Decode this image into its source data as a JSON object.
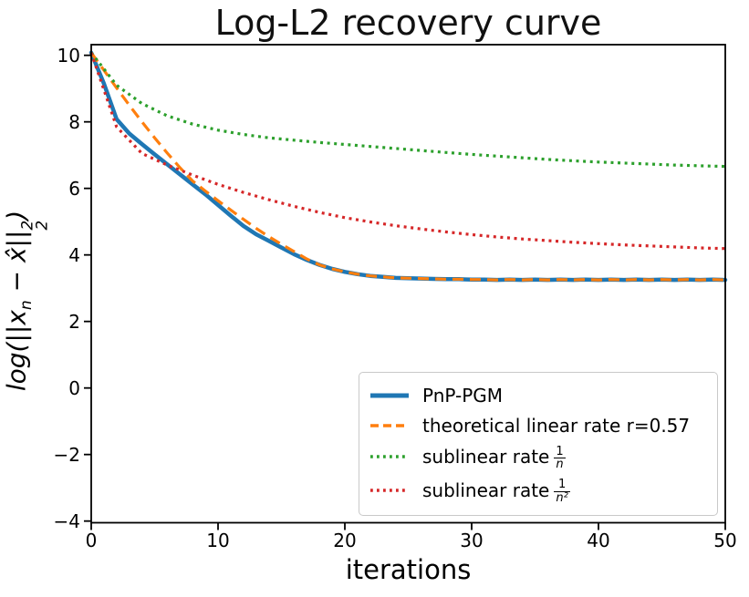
{
  "figure": {
    "background": "#ffffff",
    "axes_color": "#000000"
  },
  "chart_data": {
    "type": "line",
    "title": "Log-L2 recovery curve",
    "xlabel": "iterations",
    "ylabel": "log(||x_n − x̂||_2^2)",
    "ylabel_parts": {
      "lead": "log(||x",
      "sub_n": "n",
      "mid": " − x̂||",
      "sup_2": "2",
      "sub_2": "2",
      "close": ")"
    },
    "xlim": [
      0,
      50
    ],
    "ylim": [
      -4.05,
      10.32
    ],
    "grid": false,
    "xticks": [
      {
        "v": 0,
        "label": "0"
      },
      {
        "v": 10,
        "label": "10"
      },
      {
        "v": 20,
        "label": "20"
      },
      {
        "v": 30,
        "label": "30"
      },
      {
        "v": 40,
        "label": "40"
      },
      {
        "v": 50,
        "label": "50"
      }
    ],
    "yticks": [
      {
        "v": 10,
        "label": "10"
      },
      {
        "v": 8,
        "label": "8"
      },
      {
        "v": 6,
        "label": "6"
      },
      {
        "v": 4,
        "label": "4"
      },
      {
        "v": 2,
        "label": "2"
      },
      {
        "v": 0,
        "label": "0"
      },
      {
        "v": -2,
        "label": "−2"
      },
      {
        "v": -4,
        "label": "−4"
      }
    ],
    "legend": {
      "position": "lower right",
      "entries": [
        {
          "id": "pnp-pgm",
          "color": "#1f77b4",
          "style": "solid",
          "parts": [
            {
              "t": "text",
              "v": "PnP-PGM"
            }
          ]
        },
        {
          "id": "linear-rate",
          "color": "#ff7f0e",
          "style": "dashed",
          "parts": [
            {
              "t": "text",
              "v": "theoretical linear rate r=0.57"
            }
          ]
        },
        {
          "id": "sublinear-1-n",
          "color": "#2ca02c",
          "style": "dotted",
          "parts": [
            {
              "t": "text",
              "v": "sublinear rate"
            },
            {
              "t": "frac",
              "num": "1",
              "den": "n"
            }
          ]
        },
        {
          "id": "sublinear-1-n2",
          "color": "#d62728",
          "style": "dotted",
          "parts": [
            {
              "t": "text",
              "v": "sublinear rate"
            },
            {
              "t": "frac",
              "num": "1",
              "den": "n²"
            }
          ]
        }
      ]
    },
    "series": [
      {
        "id": "pnp-pgm",
        "name": "PnP-PGM",
        "color": "#1f77b4",
        "style": "solid",
        "width": 4.5,
        "x": [
          0,
          1,
          2,
          3,
          4,
          5,
          6,
          7,
          8,
          9,
          10,
          11,
          12,
          13,
          14,
          15,
          16,
          17,
          18,
          19,
          20,
          21,
          22,
          23,
          24,
          25,
          26,
          27,
          28,
          29,
          30,
          31,
          32,
          33,
          34,
          35,
          36,
          37,
          38,
          39,
          40,
          41,
          42,
          43,
          44,
          45,
          46,
          47,
          48,
          49,
          50
        ],
        "y": [
          10.08,
          9.15,
          8.08,
          7.65,
          7.33,
          7.02,
          6.72,
          6.42,
          6.12,
          5.82,
          5.5,
          5.18,
          4.87,
          4.62,
          4.42,
          4.22,
          4.02,
          3.85,
          3.7,
          3.58,
          3.49,
          3.42,
          3.37,
          3.34,
          3.31,
          3.3,
          3.29,
          3.28,
          3.27,
          3.27,
          3.26,
          3.26,
          3.25,
          3.26,
          3.25,
          3.26,
          3.25,
          3.26,
          3.25,
          3.26,
          3.25,
          3.26,
          3.25,
          3.26,
          3.25,
          3.26,
          3.25,
          3.26,
          3.25,
          3.26,
          3.25
        ]
      },
      {
        "id": "linear-rate",
        "name": "theoretical linear rate r=0.57",
        "color": "#ff7f0e",
        "style": "dashed",
        "width": 3.2,
        "x": [
          0,
          1,
          2,
          3,
          4,
          5,
          6,
          7,
          8,
          9,
          10,
          11,
          12,
          13,
          14,
          15,
          16,
          17,
          18,
          19,
          20,
          21,
          22,
          23,
          24,
          25,
          26,
          27,
          28,
          29,
          30,
          31,
          32,
          33,
          34,
          35,
          36,
          37,
          38,
          39,
          40,
          41,
          42,
          43,
          44,
          45,
          46,
          47,
          48,
          49,
          50
        ],
        "y": [
          10.08,
          9.55,
          9.02,
          8.5,
          8.0,
          7.52,
          7.06,
          6.62,
          6.22,
          5.92,
          5.63,
          5.35,
          5.07,
          4.8,
          4.55,
          4.32,
          4.1,
          3.88,
          3.7,
          3.58,
          3.49,
          3.42,
          3.37,
          3.34,
          3.31,
          3.3,
          3.29,
          3.28,
          3.27,
          3.27,
          3.26,
          3.26,
          3.25,
          3.26,
          3.25,
          3.26,
          3.25,
          3.26,
          3.25,
          3.26,
          3.25,
          3.26,
          3.25,
          3.26,
          3.25,
          3.26,
          3.25,
          3.26,
          3.25,
          3.26,
          3.25
        ]
      },
      {
        "id": "sublinear-1-n",
        "name": "sublinear rate 1/n",
        "color": "#2ca02c",
        "style": "dotted",
        "width": 3.2,
        "x": [
          0,
          2,
          4,
          6,
          8,
          10,
          12,
          14,
          16,
          18,
          20,
          22,
          24,
          26,
          28,
          30,
          32,
          34,
          36,
          38,
          40,
          42,
          44,
          46,
          48,
          50
        ],
        "y": [
          10.08,
          9.1,
          8.55,
          8.18,
          7.93,
          7.75,
          7.62,
          7.52,
          7.45,
          7.38,
          7.32,
          7.26,
          7.2,
          7.14,
          7.08,
          7.02,
          6.97,
          6.92,
          6.87,
          6.83,
          6.79,
          6.76,
          6.73,
          6.7,
          6.68,
          6.66
        ]
      },
      {
        "id": "sublinear-1-n2",
        "name": "sublinear rate 1/n²",
        "color": "#d62728",
        "style": "dotted",
        "width": 3.2,
        "x": [
          0,
          2,
          4,
          6,
          8,
          10,
          12,
          14,
          16,
          18,
          20,
          22,
          24,
          26,
          28,
          30,
          32,
          34,
          36,
          38,
          40,
          42,
          44,
          46,
          48,
          50
        ],
        "y": [
          10.08,
          7.85,
          7.05,
          6.7,
          6.4,
          6.12,
          5.88,
          5.66,
          5.46,
          5.28,
          5.12,
          4.99,
          4.88,
          4.78,
          4.69,
          4.61,
          4.54,
          4.48,
          4.43,
          4.38,
          4.34,
          4.3,
          4.27,
          4.24,
          4.21,
          4.19
        ]
      }
    ]
  }
}
